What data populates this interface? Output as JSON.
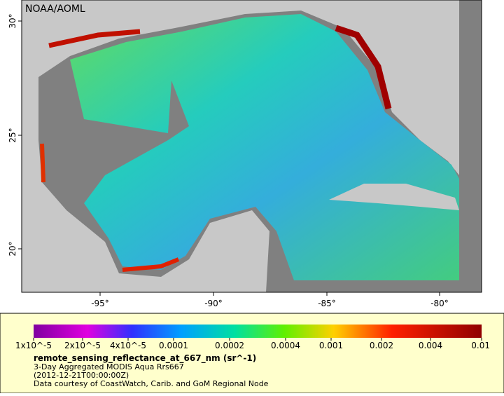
{
  "title": "NOAA/AOML",
  "map": {
    "x_axis_labels": [
      "-95°",
      "-90°",
      "-85°",
      "-80°"
    ],
    "y_axis_labels": [
      "30°",
      "25°",
      "20°"
    ]
  },
  "legend": {
    "colorbar_labels": [
      "1x10^-5",
      "2x10^-5",
      "4x10^-5",
      "0.0001",
      "0.0002",
      "0.0004",
      "0.001",
      "0.002",
      "0.004",
      "0.01"
    ],
    "variable": "remote_sensing_reflectance_at_667_nm (sr^-1)",
    "lines": [
      "3-Day Aggregated MODIS Aqua Rrs667",
      "(2012-12-21T00:00:00Z)",
      "Data courtesy of CoastWatch, Carib. and GoM Regional Node"
    ]
  }
}
